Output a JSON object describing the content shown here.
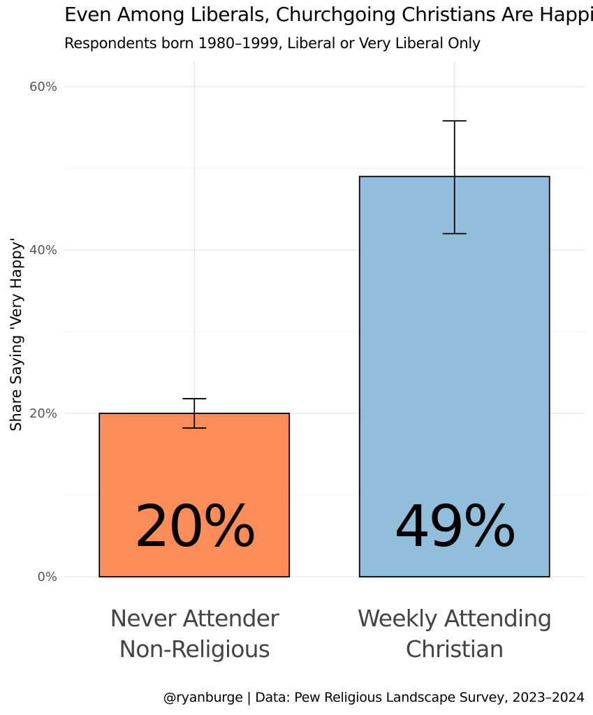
{
  "header": {
    "title": "Even Among Liberals, Churchgoing Christians Are Happier",
    "subtitle": "Respondents born 1980–1999, Liberal or Very Liberal Only"
  },
  "footer": {
    "caption": "@ryanburge | Data: Pew Religious Landscape Survey, 2023–2024"
  },
  "chart_data": {
    "type": "bar",
    "title": "Even Among Liberals, Churchgoing Christians Are Happier",
    "subtitle": "Respondents born 1980–1999, Liberal or Very Liberal Only",
    "xlabel": "",
    "ylabel": "Share Saying 'Very Happy'",
    "ylim": [
      0,
      0.62
    ],
    "yticks": [
      0,
      0.2,
      0.4,
      0.6
    ],
    "ytick_labels": [
      "0%",
      "20%",
      "40%",
      "60%"
    ],
    "categories": [
      [
        "Never Attender",
        "Non-Religious"
      ],
      [
        "Weekly Attending",
        "Christian"
      ]
    ],
    "values": [
      0.2,
      0.49
    ],
    "error_low": [
      0.182,
      0.42
    ],
    "error_high": [
      0.218,
      0.558
    ],
    "data_labels": [
      "20%",
      "49%"
    ],
    "colors": [
      "#FC8D59",
      "#91BFDB"
    ],
    "grid": true,
    "legend": "none"
  }
}
